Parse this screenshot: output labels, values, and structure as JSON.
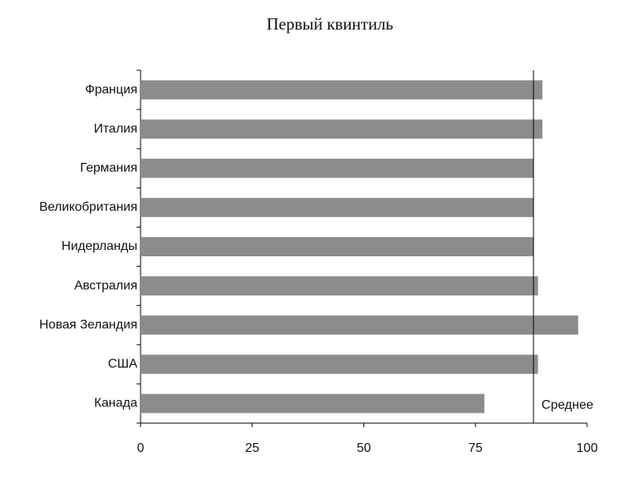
{
  "chart_data": {
    "type": "bar",
    "orientation": "horizontal",
    "title": "Первый квинтиль",
    "categories": [
      "Франция",
      "Италия",
      "Германия",
      "Великобритания",
      "Нидерланды",
      "Австралия",
      "Новая Зеландия",
      "США",
      "Канада"
    ],
    "values": [
      90,
      90,
      88,
      88,
      88,
      89,
      98,
      89,
      77
    ],
    "color": "#8c8c8c",
    "xlim": [
      0,
      100
    ],
    "xticks": [
      0,
      25,
      50,
      75,
      100
    ],
    "reference_line": {
      "value": 88,
      "label": "Среднее"
    }
  }
}
